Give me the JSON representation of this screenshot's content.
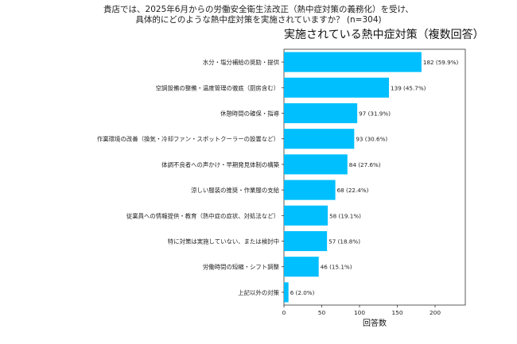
{
  "question": {
    "line1": "貴店では、2025年6月からの労働安全衛生法改正（熱中症対策の義務化）を受け、",
    "line2": "具体的にどのような熱中症対策を実施されていますか？ (n=304)"
  },
  "chart_data": {
    "type": "bar",
    "orientation": "horizontal",
    "title": "実施されている熱中症対策（複数回答）",
    "xlabel": "回答数",
    "ylabel": "",
    "xlim": [
      0,
      240
    ],
    "xticks": [
      0,
      50,
      100,
      150,
      200
    ],
    "grid": false,
    "bar_color": "#00bfff",
    "categories": [
      "水分・塩分補給の奨励・提供",
      "空調設備の整備・温度管理の徹底（厨房含む）",
      "休憩時間の確保・指導",
      "作業環境の改善（換気・冷却ファン・スポットクーラーの設置など）",
      "体調不良者への声かけ・早期発見体制の構築",
      "涼しい服装の推奨・作業服の支給",
      "従業員への情報提供・教育（熱中症の症状、対処法など）",
      "特に対策は実施していない、または検討中",
      "労働時間の短縮・シフト調整",
      "上記以外の対策"
    ],
    "values": [
      182,
      139,
      97,
      93,
      84,
      68,
      58,
      57,
      46,
      6
    ],
    "data_labels": [
      "182 (59.9%)",
      "139 (45.7%)",
      "97 (31.9%)",
      "93 (30.6%)",
      "84 (27.6%)",
      "68 (22.4%)",
      "58 (19.1%)",
      "57 (18.8%)",
      "46 (15.1%)",
      "6 (2.0%)"
    ]
  }
}
